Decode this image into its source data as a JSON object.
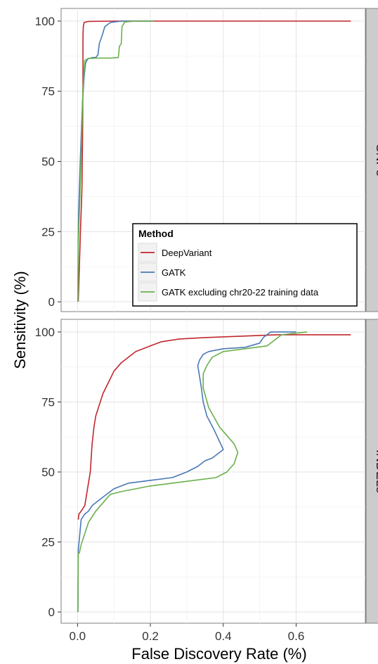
{
  "chart_data": {
    "type": "line",
    "xlabel": "False Discovery Rate (%)",
    "ylabel": "Sensitivity (%)",
    "xlim": [
      -0.045,
      0.79
    ],
    "x_ticks": [
      "0.0",
      "0.2",
      "0.4",
      "0.6"
    ],
    "x_tick_values": [
      0,
      0.2,
      0.4,
      0.6
    ],
    "y_ticks": [
      "0",
      "25",
      "50",
      "75",
      "100"
    ],
    "y_tick_values": [
      0,
      25,
      50,
      75,
      100
    ],
    "grid": true,
    "legend": {
      "title": "Method",
      "placement": "bottom-right of top panel",
      "entries": [
        {
          "label": "DeepVariant",
          "color": "#c0272d"
        },
        {
          "label": "GATK",
          "color": "#4a78b5"
        },
        {
          "label": "GATK excluding chr20-22 training data",
          "color": "#6ab04c"
        }
      ]
    },
    "panels": [
      {
        "strip": "SNPs",
        "ylim": [
          -3.5,
          104.5
        ],
        "series": [
          {
            "name": "DeepVariant",
            "color": "#c0272d",
            "x": [
              0.002,
              0.008,
              0.012,
              0.014,
              0.015,
              0.015,
              0.016,
              0.018,
              0.03,
              0.1,
              0.22,
              0.75
            ],
            "y": [
              0,
              25,
              40,
              60,
              80,
              95,
              98,
              99.5,
              99.9,
              100,
              100,
              100
            ]
          },
          {
            "name": "GATK",
            "color": "#4a78b5",
            "x": [
              0.001,
              0.002,
              0.003,
              0.005,
              0.008,
              0.011,
              0.014,
              0.018,
              0.022,
              0.028,
              0.035,
              0.042,
              0.05,
              0.056,
              0.06,
              0.068,
              0.075,
              0.09,
              0.12,
              0.21
            ],
            "y": [
              0,
              22,
              32,
              40,
              52,
              62,
              72,
              80,
              85,
              86.5,
              86.8,
              87,
              87,
              88,
              92,
              95,
              98,
              99.5,
              100,
              100
            ]
          },
          {
            "name": "GATK excluding chr20-22 training data",
            "color": "#6ab04c",
            "x": [
              0.001,
              0.002,
              0.004,
              0.006,
              0.009,
              0.012,
              0.015,
              0.02,
              0.03,
              0.06,
              0.09,
              0.112,
              0.115,
              0.12,
              0.122,
              0.13,
              0.16,
              0.21
            ],
            "y": [
              0,
              20,
              28,
              35,
              48,
              62,
              76,
              86,
              86.7,
              86.8,
              86.8,
              87,
              91,
              92,
              98,
              99.7,
              100,
              100
            ]
          }
        ]
      },
      {
        "strip": "INDELs",
        "ylim": [
          -4,
          104.5
        ],
        "series": [
          {
            "name": "DeepVariant",
            "color": "#c0272d",
            "x": [
              0.002,
              0.004,
              0.01,
              0.02,
              0.025,
              0.035,
              0.04,
              0.045,
              0.05,
              0.06,
              0.07,
              0.085,
              0.1,
              0.12,
              0.14,
              0.16,
              0.18,
              0.2,
              0.23,
              0.28,
              0.35,
              0.45,
              0.55,
              0.75
            ],
            "y": [
              33,
              35,
              36,
              38,
              42,
              50,
              60,
              66,
              70,
              74,
              78,
              82,
              86,
              89,
              91,
              93,
              94,
              95,
              96.5,
              97.5,
              98,
              98.5,
              99,
              99
            ]
          },
          {
            "name": "GATK",
            "color": "#4a78b5",
            "x": [
              0.001,
              0.002,
              0.01,
              0.02,
              0.03,
              0.04,
              0.06,
              0.08,
              0.1,
              0.14,
              0.2,
              0.26,
              0.3,
              0.33,
              0.35,
              0.37,
              0.4,
              0.375,
              0.355,
              0.345,
              0.34,
              0.335,
              0.33,
              0.335,
              0.345,
              0.36,
              0.4,
              0.46,
              0.5,
              0.51,
              0.53,
              0.6
            ],
            "y": [
              0,
              22,
              33,
              35,
              36,
              38,
              40,
              42,
              44,
              46,
              47,
              48,
              50,
              52,
              54,
              55,
              58,
              65,
              70,
              75,
              80,
              84,
              88,
              90,
              92,
              93,
              94,
              94.5,
              96,
              98,
              100,
              100
            ]
          },
          {
            "name": "GATK excluding chr20-22 training data",
            "color": "#6ab04c",
            "x": [
              0.001,
              0.002,
              0.005,
              0.01,
              0.02,
              0.03,
              0.05,
              0.07,
              0.09,
              0.12,
              0.16,
              0.2,
              0.26,
              0.32,
              0.38,
              0.41,
              0.43,
              0.44,
              0.43,
              0.39,
              0.36,
              0.345,
              0.345,
              0.355,
              0.37,
              0.4,
              0.46,
              0.52,
              0.54,
              0.56,
              0.63
            ],
            "y": [
              0,
              21,
              21,
              24,
              28,
              32,
              36,
              39,
              42,
              43,
              44,
              45,
              46,
              47,
              48,
              50,
              53,
              57,
              60,
              66,
              73,
              80,
              85,
              88,
              91,
              93,
              94,
              95,
              97,
              99,
              100
            ]
          }
        ]
      }
    ]
  }
}
